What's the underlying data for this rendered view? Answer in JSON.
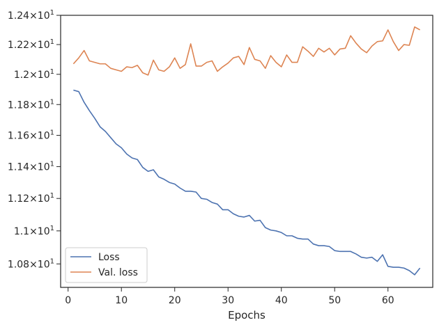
{
  "chart_data": {
    "type": "line",
    "title": "",
    "xlabel": "Epochs",
    "ylabel": "",
    "xlim": [
      -1.4,
      68.4
    ],
    "ylim": [
      10.66,
      12.4
    ],
    "y_scale": "log",
    "x_ticks": [
      0,
      10,
      20,
      30,
      40,
      50,
      60
    ],
    "x_tick_labels": [
      "0",
      "10",
      "20",
      "30",
      "40",
      "50",
      "60"
    ],
    "y_ticks": [
      10.8,
      11.0,
      11.2,
      11.4,
      11.6,
      11.8,
      12.0,
      12.2,
      12.4
    ],
    "y_tick_mantissas": [
      "1.08",
      "1.1",
      "1.12",
      "1.14",
      "1.16",
      "1.18",
      "1.2",
      "1.22",
      "1.24"
    ],
    "y_tick_base": "10",
    "y_tick_exponent": "1",
    "grid": false,
    "legend_position": "lower-left",
    "x": [
      1,
      2,
      3,
      4,
      5,
      6,
      7,
      8,
      9,
      10,
      11,
      12,
      13,
      14,
      15,
      16,
      17,
      18,
      19,
      20,
      21,
      22,
      23,
      24,
      25,
      26,
      27,
      28,
      29,
      30,
      31,
      32,
      33,
      34,
      35,
      36,
      37,
      38,
      39,
      40,
      41,
      42,
      43,
      44,
      45,
      46,
      47,
      48,
      49,
      50,
      51,
      52,
      53,
      54,
      55,
      56,
      57,
      58,
      59,
      60,
      61,
      62,
      63,
      64,
      65,
      66
    ],
    "series": [
      {
        "name": "Loss",
        "color": "#4c72b0",
        "values": [
          11.895,
          11.885,
          11.815,
          11.76,
          11.71,
          11.655,
          11.625,
          11.585,
          11.545,
          11.52,
          11.48,
          11.455,
          11.445,
          11.395,
          11.37,
          11.38,
          11.335,
          11.32,
          11.3,
          11.29,
          11.265,
          11.245,
          11.245,
          11.24,
          11.2,
          11.195,
          11.175,
          11.165,
          11.13,
          11.13,
          11.105,
          11.09,
          11.085,
          11.095,
          11.06,
          11.065,
          11.02,
          11.005,
          11.0,
          10.99,
          10.97,
          10.97,
          10.955,
          10.95,
          10.95,
          10.92,
          10.91,
          10.91,
          10.905,
          10.88,
          10.875,
          10.875,
          10.875,
          10.86,
          10.84,
          10.835,
          10.84,
          10.815,
          10.855,
          10.785,
          10.78,
          10.78,
          10.775,
          10.76,
          10.735,
          10.775
        ]
      },
      {
        "name": "Val. loss",
        "color": "#dd8452",
        "values": [
          12.07,
          12.11,
          12.16,
          12.09,
          12.08,
          12.07,
          12.07,
          12.04,
          12.03,
          12.02,
          12.05,
          12.045,
          12.06,
          12.01,
          11.995,
          12.095,
          12.03,
          12.02,
          12.05,
          12.11,
          12.04,
          12.065,
          12.205,
          12.055,
          12.055,
          12.08,
          12.09,
          12.02,
          12.05,
          12.075,
          12.11,
          12.12,
          12.065,
          12.18,
          12.1,
          12.09,
          12.04,
          12.125,
          12.08,
          12.05,
          12.13,
          12.08,
          12.08,
          12.185,
          12.155,
          12.12,
          12.175,
          12.15,
          12.175,
          12.13,
          12.17,
          12.175,
          12.26,
          12.21,
          12.17,
          12.145,
          12.19,
          12.22,
          12.225,
          12.3,
          12.22,
          12.16,
          12.2,
          12.195,
          12.32,
          12.3
        ]
      }
    ]
  }
}
